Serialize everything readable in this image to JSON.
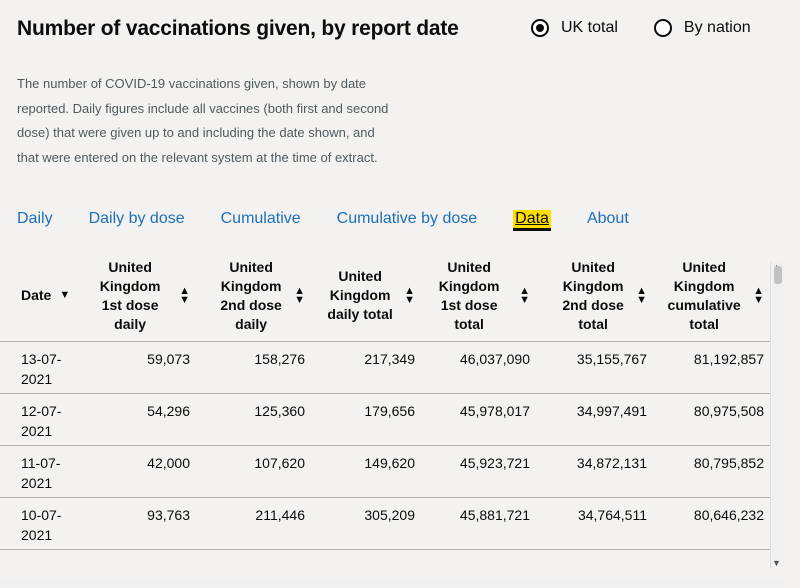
{
  "header": {
    "title": "Number of vaccinations given, by report date",
    "radio_options": [
      "UK total",
      "By nation"
    ],
    "selected_radio": "UK total"
  },
  "description": "The number of COVID-19 vaccinations given, shown by date reported. Daily figures include all vaccines (both first and second dose) that were given up to and including the date shown, and that were entered on the relevant system at the time of extract.",
  "tabs": [
    "Daily",
    "Daily by dose",
    "Cumulative",
    "Cumulative by dose",
    "Data",
    "About"
  ],
  "active_tab": "Data",
  "table": {
    "columns": [
      "Date",
      "United Kingdom 1st dose daily",
      "United Kingdom 2nd dose daily",
      "United Kingdom daily total",
      "United Kingdom 1st dose total",
      "United Kingdom 2nd dose total",
      "United Kingdom cumulative total"
    ],
    "rows": [
      [
        "13-07-2021",
        "59,073",
        "158,276",
        "217,349",
        "46,037,090",
        "35,155,767",
        "81,192,857"
      ],
      [
        "12-07-2021",
        "54,296",
        "125,360",
        "179,656",
        "45,978,017",
        "34,997,491",
        "80,975,508"
      ],
      [
        "11-07-2021",
        "42,000",
        "107,620",
        "149,620",
        "45,923,721",
        "34,872,131",
        "80,795,852"
      ],
      [
        "10-07-2021",
        "93,763",
        "211,446",
        "305,209",
        "45,881,721",
        "34,764,511",
        "80,646,232"
      ]
    ]
  }
}
